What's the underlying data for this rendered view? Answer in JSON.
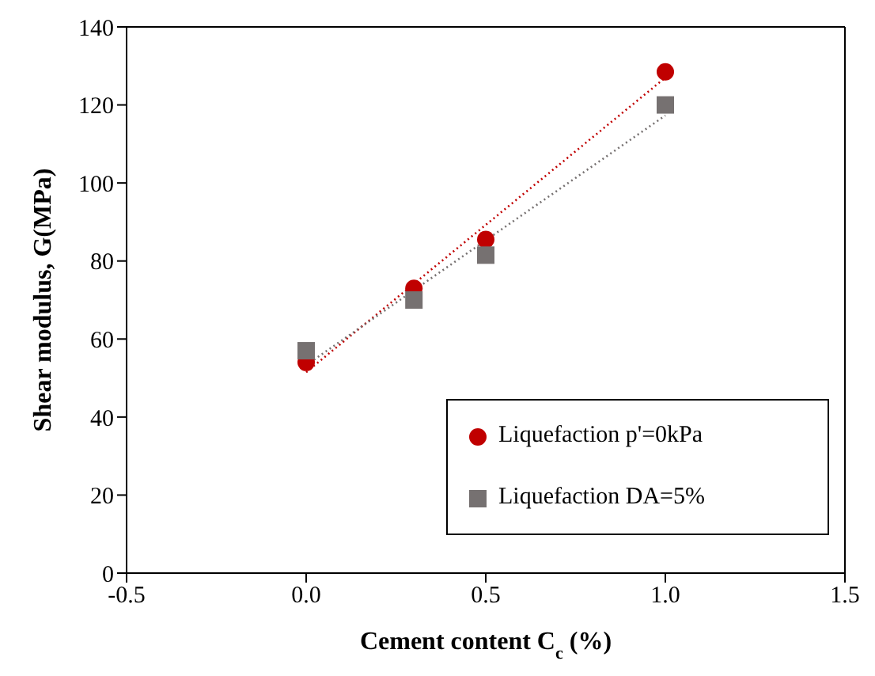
{
  "chart_data": {
    "type": "scatter",
    "xlabel": "Cement content C$_{c}$ (%)",
    "ylabel": "Shear modulus,  G(MPa)",
    "xlim": [
      -0.5,
      1.5
    ],
    "xticks": [
      -0.5,
      {
        "value": 0,
        "label": "0.0"
      },
      0.5,
      {
        "value": 1,
        "label": "1.0"
      },
      1.5
    ],
    "ylim": [
      0,
      140
    ],
    "yticks": [
      0,
      20,
      40,
      60,
      80,
      100,
      120,
      140
    ],
    "legend": "bottom right",
    "series": [
      {
        "name": "Liquefaction p'=0kPa",
        "color": "#c00000",
        "marker": "circle",
        "x": [
          0,
          0.3,
          0.5,
          1
        ],
        "values": [
          54,
          73,
          85.5,
          128.5
        ]
      },
      {
        "name": "Liquefaction DA=5%",
        "color": "#767171",
        "marker": "square",
        "x": [
          0,
          0.3,
          0.5,
          1
        ],
        "values": [
          57,
          70,
          81.5,
          120
        ]
      },
      {
        "type": "line",
        "color": "#c00000",
        "line_style": "dotted",
        "marker": "none",
        "x": [
          0,
          1
        ],
        "values": [
          51.5,
          127
        ]
      },
      {
        "type": "line",
        "color": "#767171",
        "line_style": "dotted",
        "marker": "none",
        "x": [
          0,
          1
        ],
        "values": [
          53.3,
          117.3
        ]
      }
    ]
  }
}
